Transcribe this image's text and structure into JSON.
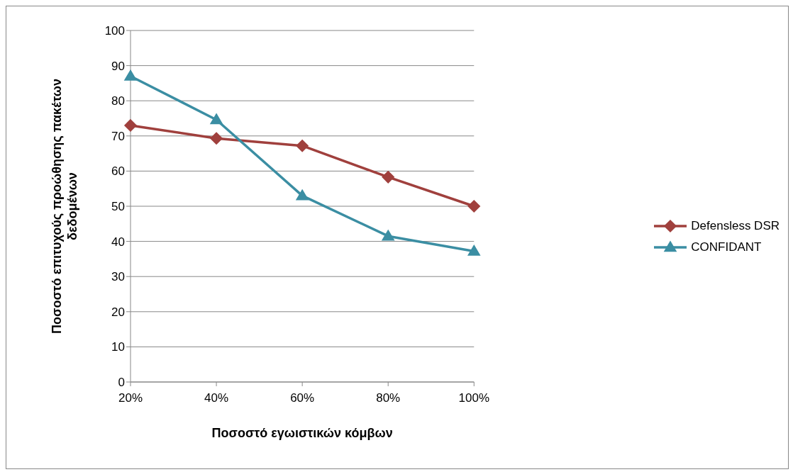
{
  "chart_data": {
    "type": "line",
    "xlabel": "Ποσοστό εγωιστικών κόμβων",
    "ylabel": "Ποσοστό επιτυχούς προώθησης  πακέτων\nδεδομένων",
    "categories": [
      "20%",
      "40%",
      "60%",
      "80%",
      "100%"
    ],
    "series": [
      {
        "name": "Defensless DSR",
        "color": "#a0403d",
        "marker": "diamond",
        "values": [
          73,
          69.3,
          67.2,
          58.3,
          50
        ]
      },
      {
        "name": "CONFIDANT",
        "color": "#3b8ea3",
        "marker": "triangle",
        "values": [
          87,
          74.6,
          53,
          41.5,
          37.2
        ]
      }
    ],
    "ylim": [
      0,
      100
    ],
    "yticks": [
      0,
      10,
      20,
      30,
      40,
      50,
      60,
      70,
      80,
      90,
      100
    ],
    "grid": "y",
    "legend": "right"
  }
}
